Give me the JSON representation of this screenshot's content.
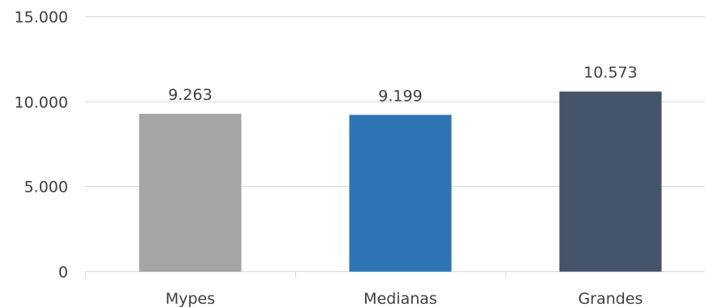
{
  "chart_data": {
    "type": "bar",
    "categories": [
      "Mypes",
      "Medianas",
      "Grandes"
    ],
    "values": [
      9263,
      9199,
      10573
    ],
    "value_labels": [
      "9.263",
      "9.199",
      "10.573"
    ],
    "y_ticks": [
      0,
      5000,
      10000,
      15000
    ],
    "y_tick_labels": [
      "0",
      "5.000",
      "10.000",
      "15.000"
    ],
    "ylim": [
      0,
      15000
    ],
    "grid": true,
    "legend": "none",
    "colors": [
      "#a5a5a5",
      "#2e75b6",
      "#44546a"
    ],
    "title": "",
    "xlabel": "",
    "ylabel": ""
  }
}
